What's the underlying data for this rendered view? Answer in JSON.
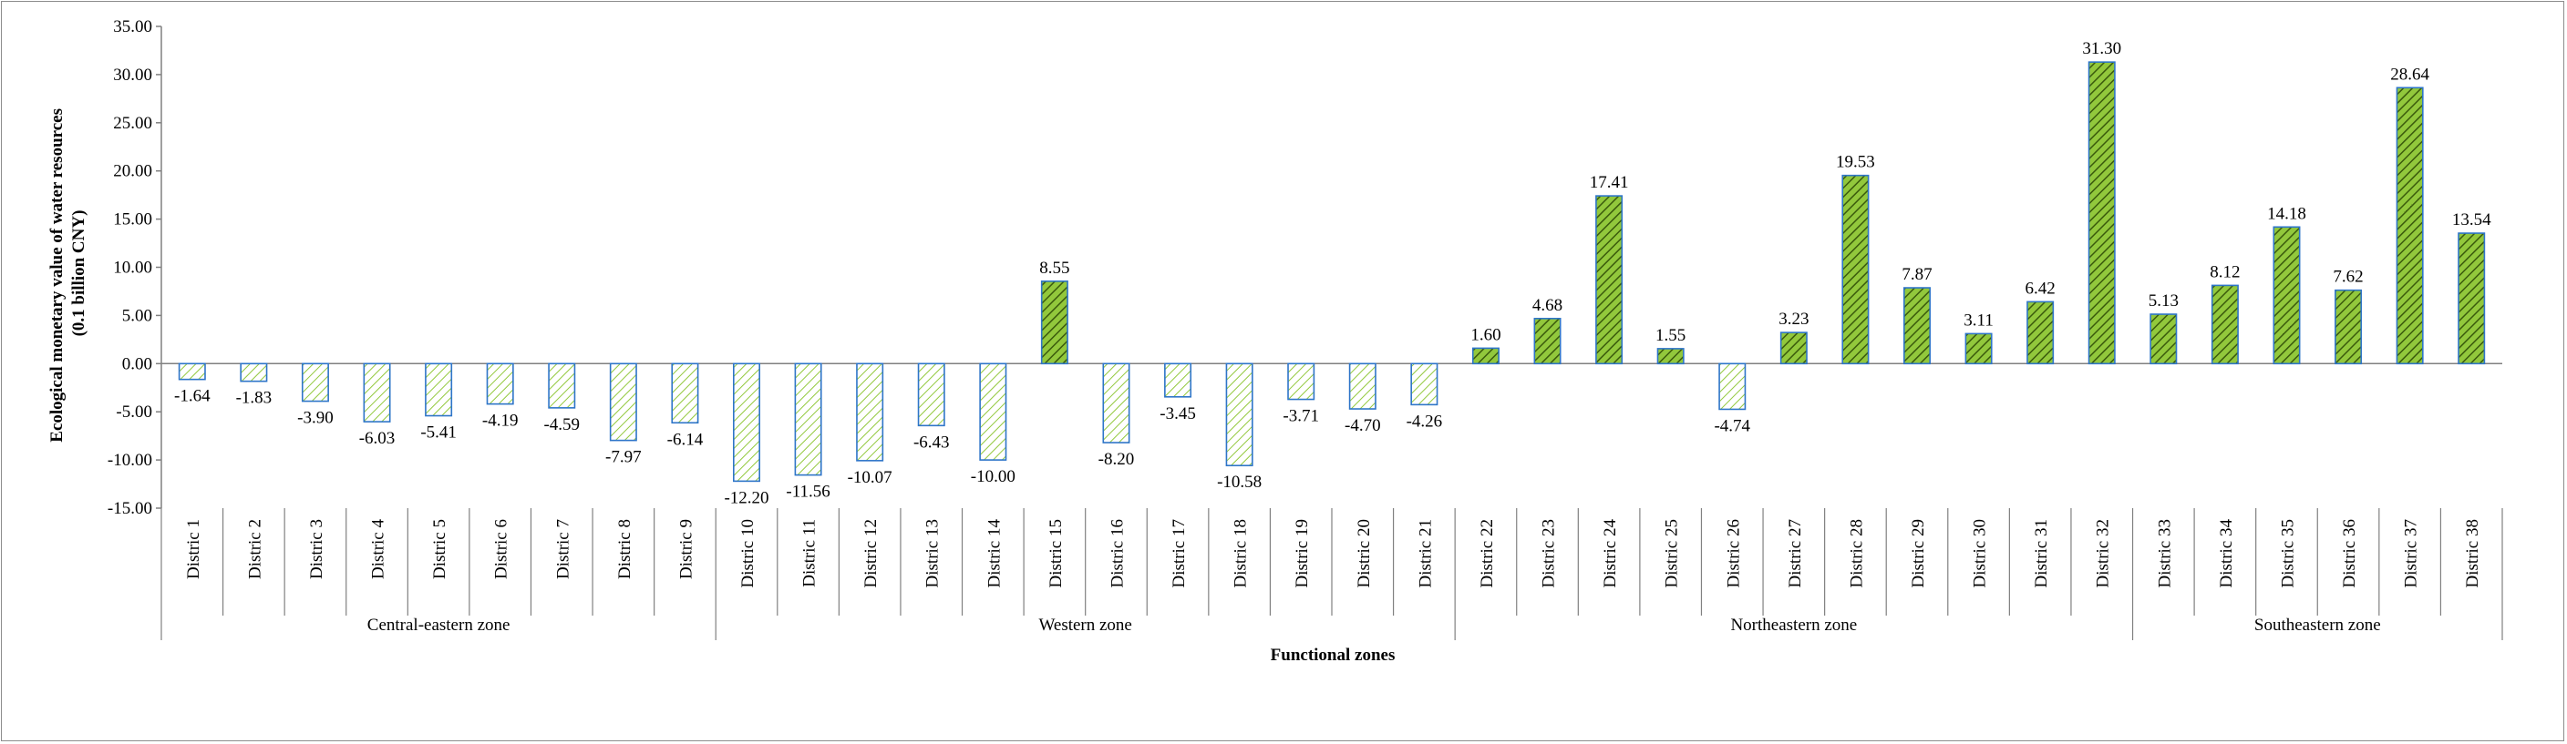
{
  "chart_data": {
    "type": "bar",
    "xlabel": "Functional zones",
    "ylabel_lines": [
      "Ecological monetary value of water resources",
      "(0.1 billion CNY)"
    ],
    "ylim": [
      -15,
      35
    ],
    "yticks": [
      "35.00",
      "30.00",
      "25.00",
      "20.00",
      "15.00",
      "10.00",
      "5.00",
      "0.00",
      "-5.00",
      "-10.00",
      "-15.00"
    ],
    "categories": [
      "Distric 1",
      "Distric 2",
      "Distric 3",
      "Distric 4",
      "Distric 5",
      "Distric 6",
      "Distric 7",
      "Distric 8",
      "Distric 9",
      "Distric 10",
      "Distric 11",
      "Distric 12",
      "Distric 13",
      "Distric 14",
      "Distric 15",
      "Distric 16",
      "Distric 17",
      "Distric 18",
      "Distric 19",
      "Distric 20",
      "Distric 21",
      "Distric 22",
      "Distric 23",
      "Distric 24",
      "Distric 25",
      "Distric 26",
      "Distric 27",
      "Distric 28",
      "Distric 29",
      "Distric 30",
      "Distric 31",
      "Distric 32",
      "Distric 33",
      "Distric 34",
      "Distric 35",
      "Distric 36",
      "Distric 37",
      "Distric 38"
    ],
    "values": [
      -1.64,
      -1.83,
      -3.9,
      -6.03,
      -5.41,
      -4.19,
      -4.59,
      -7.97,
      -6.14,
      -12.2,
      -11.56,
      -10.07,
      -6.43,
      -10.0,
      8.55,
      -8.2,
      -3.45,
      -10.58,
      -3.71,
      -4.7,
      -4.26,
      1.6,
      4.68,
      17.41,
      1.55,
      -4.74,
      3.23,
      19.53,
      7.87,
      3.11,
      6.42,
      31.3,
      5.13,
      8.12,
      14.18,
      7.62,
      28.64,
      13.54
    ],
    "value_labels": [
      "-1.64",
      "-1.83",
      "-3.90",
      "-6.03",
      "-5.41",
      "-4.19",
      "-4.59",
      "-7.97",
      "-6.14",
      "-12.20",
      "-11.56",
      "-10.07",
      "-6.43",
      "-10.00",
      "8.55",
      "-8.20",
      "-3.45",
      "-10.58",
      "-3.71",
      "-4.70",
      "-4.26",
      "1.60",
      "4.68",
      "17.41",
      "1.55",
      "-4.74",
      "3.23",
      "19.53",
      "7.87",
      "3.11",
      "6.42",
      "31.30",
      "5.13",
      "8.12",
      "14.18",
      "7.62",
      "28.64",
      "13.54"
    ],
    "groups": [
      {
        "name": "Central-eastern zone",
        "count": 9
      },
      {
        "name": "Western zone",
        "count": 12
      },
      {
        "name": "Northeastern zone",
        "count": 11
      },
      {
        "name": "Southeastern zone",
        "count": 6
      }
    ],
    "colors": {
      "positive_fill": "#92c83c",
      "negative_fill": "#d6e5a6",
      "bar_border": "#2e75c8",
      "hatch_line": "#3a5a0c",
      "axis": "#808080"
    }
  }
}
